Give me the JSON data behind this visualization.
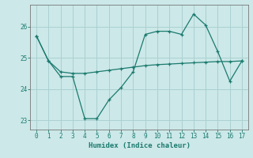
{
  "xlabel": "Humidex (Indice chaleur)",
  "x": [
    0,
    1,
    2,
    3,
    4,
    5,
    6,
    7,
    8,
    9,
    10,
    11,
    12,
    13,
    14,
    15,
    16,
    17
  ],
  "jagged": [
    25.7,
    24.9,
    24.4,
    24.4,
    23.05,
    23.05,
    23.65,
    24.05,
    24.55,
    25.75,
    25.85,
    25.85,
    25.75,
    26.4,
    26.05,
    25.2,
    24.25,
    24.9
  ],
  "smooth": [
    25.7,
    24.9,
    24.55,
    24.5,
    24.5,
    24.55,
    24.6,
    24.65,
    24.7,
    24.75,
    24.78,
    24.8,
    24.82,
    24.84,
    24.86,
    24.88,
    24.88,
    24.9
  ],
  "line_color": "#1a7a6e",
  "bg_color": "#cce8e8",
  "grid_color": "#aad0d0",
  "ylim": [
    22.7,
    26.7
  ],
  "yticks": [
    23,
    24,
    25,
    26
  ],
  "xticks": [
    0,
    1,
    2,
    3,
    4,
    5,
    6,
    7,
    8,
    9,
    10,
    11,
    12,
    13,
    14,
    15,
    16,
    17
  ]
}
